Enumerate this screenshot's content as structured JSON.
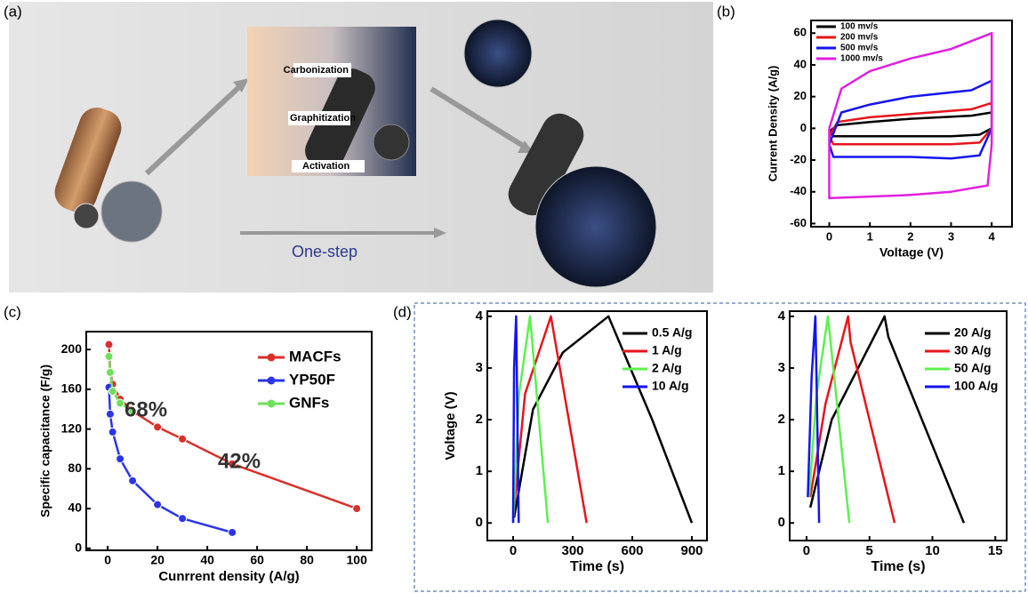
{
  "panel_labels": [
    "(a)",
    "(b)",
    "(c)",
    "(d)"
  ],
  "illustration": {
    "steps": [
      "Carbonization",
      "Graphitization",
      "Activation"
    ],
    "route": "One-step"
  },
  "chart_data": [
    {
      "type": "line",
      "xlabel": "Voltage (V)",
      "ylabel": "Current Density (A/g)",
      "xlim": [
        -0.45,
        4.5
      ],
      "ylim": [
        -62,
        68
      ],
      "xticks": [
        0,
        1,
        2,
        3,
        4
      ],
      "yticks": [
        -60,
        -40,
        -20,
        0,
        20,
        40,
        60
      ],
      "legend": "upper left",
      "series": [
        {
          "name": "100 mv/s",
          "color": "#000000",
          "x": [
            0,
            0.1,
            1,
            2,
            3,
            3.7,
            4,
            4,
            3.5,
            2,
            1,
            0.2,
            0
          ],
          "values": [
            -2,
            -5,
            -5,
            -5,
            -5,
            -4,
            0,
            10,
            8,
            6,
            4,
            2,
            -2
          ]
        },
        {
          "name": "200 mv/s",
          "color": "#e8141b",
          "x": [
            0,
            0.1,
            1,
            2,
            3,
            3.7,
            4,
            4,
            3.5,
            2,
            1,
            0.2,
            0
          ],
          "values": [
            -5,
            -10,
            -10,
            -10,
            -10,
            -9,
            0,
            16,
            12,
            9,
            7,
            4,
            -5
          ]
        },
        {
          "name": "500 mv/s",
          "color": "#1414f0",
          "x": [
            0,
            0.1,
            1,
            2,
            3,
            3.7,
            4,
            4,
            3.5,
            2,
            1,
            0.3,
            0
          ],
          "values": [
            -10,
            -18,
            -18,
            -18,
            -19,
            -17,
            0,
            30,
            24,
            20,
            15,
            10,
            -10
          ]
        },
        {
          "name": "1000 mv/s",
          "color": "#e020e0",
          "x": [
            0,
            0,
            1,
            2,
            3,
            3.9,
            4,
            4,
            3,
            2,
            1,
            0.3,
            0
          ],
          "values": [
            0,
            -44,
            -43,
            -42,
            -40,
            -36,
            -10,
            60,
            50,
            44,
            36,
            25,
            0
          ]
        }
      ]
    },
    {
      "type": "line",
      "markers": true,
      "xlabel": "Cunrrent density (A/g)",
      "ylabel": "Specific capacitance (F/g)",
      "xlim": [
        -8.6,
        106
      ],
      "ylim": [
        -2,
        218
      ],
      "xticks": [
        0,
        20,
        40,
        60,
        80,
        100
      ],
      "yticks": [
        0,
        40,
        80,
        120,
        160,
        200
      ],
      "legend": "upper right",
      "annotations": [
        "68%",
        "42%"
      ],
      "series": [
        {
          "name": "MACFs",
          "color": "#d9302a",
          "x": [
            0.5,
            1,
            2,
            5,
            10,
            20,
            30,
            50,
            100
          ],
          "values": [
            205,
            178,
            165,
            150,
            138,
            122,
            110,
            85,
            40
          ]
        },
        {
          "name": "YP50F",
          "color": "#2a35e8",
          "x": [
            0.5,
            1,
            2,
            5,
            10,
            20,
            30,
            50
          ],
          "values": [
            162,
            135,
            117,
            90,
            68,
            44,
            30,
            16
          ]
        },
        {
          "name": "GNFs",
          "color": "#6ee05a",
          "x": [
            0.5,
            1,
            2,
            5,
            10
          ],
          "values": [
            193,
            177,
            158,
            146,
            138
          ]
        }
      ]
    },
    {
      "type": "line",
      "xlabel": "Time (s)",
      "ylabel": "Voltage (V)",
      "xlim": [
        -130,
        976
      ],
      "ylim": [
        -0.34,
        4.1
      ],
      "xticks": [
        0,
        300,
        600,
        900
      ],
      "yticks": [
        0,
        1,
        2,
        3,
        4
      ],
      "legend": "upper right",
      "series": [
        {
          "name": "0.5 A/g",
          "color": "#000000",
          "x": [
            5,
            100,
            250,
            480,
            700,
            900
          ],
          "values": [
            0.1,
            2.2,
            3.3,
            4,
            2,
            0
          ]
        },
        {
          "name": "1 A/g",
          "color": "#e8141b",
          "x": [
            0,
            60,
            190,
            370
          ],
          "values": [
            0.1,
            2.5,
            4,
            0
          ]
        },
        {
          "name": "2 A/g",
          "color": "#5ef050",
          "x": [
            0,
            30,
            85,
            175
          ],
          "values": [
            0,
            2.5,
            4,
            0
          ]
        },
        {
          "name": "10 A/g",
          "color": "#1414f0",
          "x": [
            0,
            5,
            15,
            28
          ],
          "values": [
            0,
            3,
            4,
            0
          ]
        }
      ]
    },
    {
      "type": "line",
      "xlabel": "Time (s)",
      "xlim": [
        -1.34,
        15.9
      ],
      "ylim": [
        -0.34,
        4.1
      ],
      "xticks": [
        0,
        5,
        10,
        15
      ],
      "yticks": [
        0,
        1,
        2,
        3,
        4
      ],
      "legend": "upper right",
      "series": [
        {
          "name": "20 A/g",
          "color": "#000000",
          "x": [
            0.3,
            2,
            6.2,
            6.5,
            12.5
          ],
          "values": [
            0.3,
            2,
            4,
            3.6,
            0
          ]
        },
        {
          "name": "30 A/g",
          "color": "#e8141b",
          "x": [
            0.3,
            1.5,
            3.3,
            3.5,
            7
          ],
          "values": [
            0.5,
            2.3,
            4,
            3.5,
            0
          ]
        },
        {
          "name": "50 A/g",
          "color": "#5ef050",
          "x": [
            0.2,
            0.8,
            1.7,
            3.4
          ],
          "values": [
            0.5,
            2.5,
            4,
            0
          ]
        },
        {
          "name": "100 A/g",
          "color": "#1414f0",
          "x": [
            0.1,
            0.4,
            0.7,
            1
          ],
          "values": [
            0.5,
            2.8,
            4,
            0
          ]
        }
      ]
    }
  ]
}
